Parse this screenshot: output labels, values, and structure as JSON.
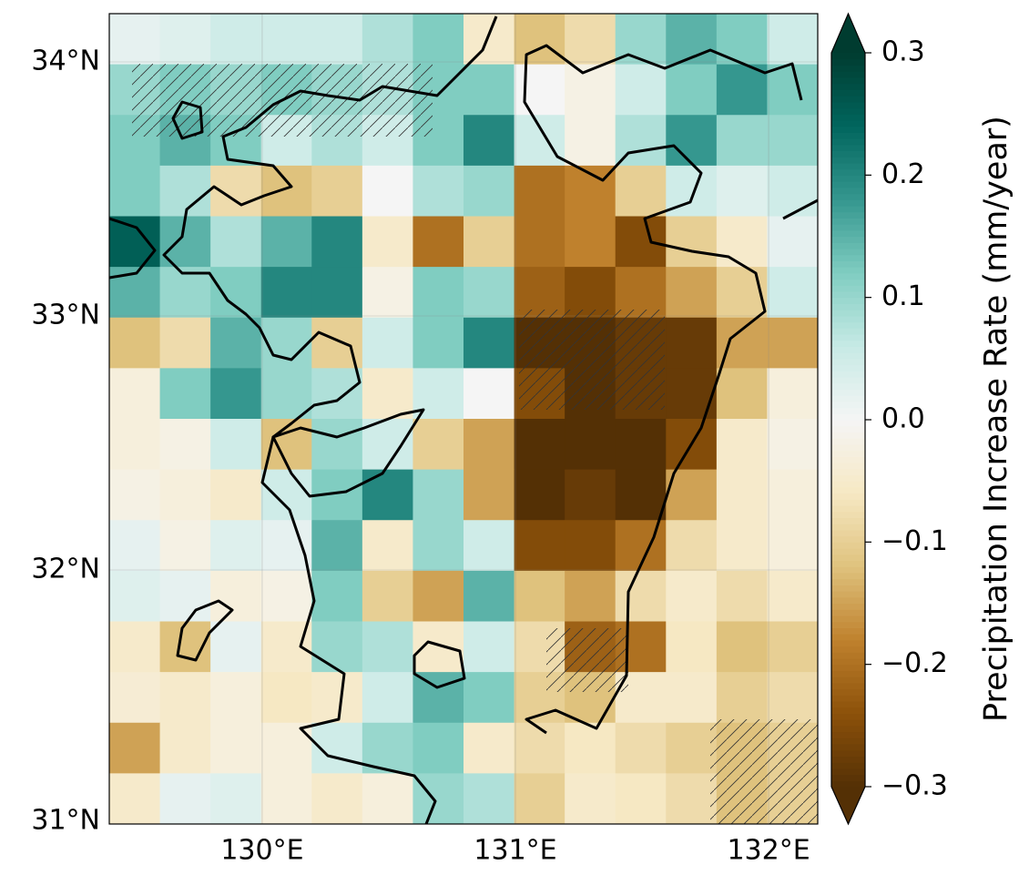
{
  "chart_data": {
    "type": "heatmap",
    "xlim": [
      129.396,
      132.194
    ],
    "ylim": [
      31,
      34.19
    ],
    "xticks": [
      {
        "value": 130,
        "label": "130°E"
      },
      {
        "value": 131,
        "label": "131°E"
      },
      {
        "value": 132,
        "label": "132°E"
      }
    ],
    "yticks": [
      {
        "value": 31,
        "label": "31°N"
      },
      {
        "value": 32,
        "label": "32°N"
      },
      {
        "value": 33,
        "label": "33°N"
      },
      {
        "value": 34,
        "label": "34°N"
      }
    ],
    "grid": true,
    "values": [
      [
        0.02,
        0.03,
        0.05,
        0.05,
        0.05,
        0.08,
        0.12,
        -0.05,
        -0.12,
        -0.08,
        0.1,
        0.15,
        0.12,
        0.05
      ],
      [
        0.1,
        0.12,
        0.1,
        0.12,
        0.1,
        0.08,
        0.12,
        0.12,
        0.0,
        -0.02,
        0.05,
        0.12,
        0.18,
        0.12
      ],
      [
        0.12,
        0.15,
        0.12,
        0.05,
        0.08,
        0.05,
        0.12,
        0.2,
        0.05,
        -0.02,
        0.08,
        0.18,
        0.1,
        0.1
      ],
      [
        0.12,
        0.08,
        -0.08,
        -0.12,
        -0.1,
        0.0,
        0.08,
        0.1,
        -0.2,
        -0.18,
        -0.1,
        0.05,
        0.03,
        0.05
      ],
      [
        0.25,
        0.15,
        0.08,
        0.15,
        0.2,
        -0.05,
        -0.2,
        -0.1,
        -0.2,
        -0.18,
        -0.25,
        -0.1,
        -0.05,
        0.02
      ],
      [
        0.15,
        0.1,
        0.12,
        0.2,
        0.2,
        -0.02,
        0.12,
        0.1,
        -0.22,
        -0.25,
        -0.2,
        -0.15,
        -0.1,
        0.05
      ],
      [
        -0.12,
        -0.08,
        0.15,
        0.1,
        -0.1,
        0.05,
        0.12,
        0.2,
        -0.3,
        -0.3,
        -0.28,
        -0.28,
        -0.15,
        -0.15
      ],
      [
        -0.03,
        0.12,
        0.18,
        0.1,
        0.08,
        -0.05,
        0.05,
        0.0,
        -0.25,
        -0.3,
        -0.28,
        -0.28,
        -0.12,
        -0.03
      ],
      [
        -0.03,
        -0.02,
        0.05,
        -0.12,
        0.1,
        0.05,
        -0.1,
        -0.15,
        -0.3,
        -0.3,
        -0.3,
        -0.25,
        -0.05,
        -0.02
      ],
      [
        -0.02,
        -0.03,
        -0.05,
        0.05,
        0.12,
        0.2,
        0.1,
        -0.15,
        -0.3,
        -0.28,
        -0.3,
        -0.15,
        -0.05,
        -0.03
      ],
      [
        0.02,
        -0.02,
        0.03,
        0.02,
        0.15,
        -0.05,
        0.1,
        0.05,
        -0.25,
        -0.25,
        -0.2,
        -0.08,
        -0.05,
        -0.03
      ],
      [
        0.03,
        0.02,
        -0.03,
        -0.02,
        0.12,
        -0.1,
        -0.15,
        0.15,
        -0.12,
        -0.15,
        -0.08,
        -0.05,
        -0.08,
        -0.05
      ],
      [
        -0.05,
        -0.12,
        0.02,
        -0.05,
        0.1,
        0.08,
        -0.05,
        0.05,
        -0.08,
        -0.22,
        -0.2,
        -0.06,
        -0.12,
        -0.1
      ],
      [
        -0.04,
        -0.05,
        -0.03,
        -0.06,
        -0.05,
        0.05,
        0.15,
        0.12,
        -0.1,
        -0.12,
        -0.05,
        -0.05,
        -0.1,
        -0.08
      ],
      [
        -0.15,
        -0.05,
        -0.03,
        -0.03,
        0.05,
        0.1,
        0.12,
        -0.05,
        -0.08,
        -0.06,
        -0.08,
        -0.1,
        -0.12,
        -0.1
      ],
      [
        -0.05,
        0.02,
        0.03,
        -0.03,
        -0.05,
        -0.03,
        0.1,
        0.08,
        -0.1,
        -0.05,
        -0.06,
        -0.08,
        -0.12,
        -0.1
      ]
    ],
    "colormap": [
      "#543005",
      "#8c510a",
      "#bf812d",
      "#dfc27d",
      "#f6e8c3",
      "#f5f5f5",
      "#c7eae5",
      "#80cdc1",
      "#35978f",
      "#01665e",
      "#003c30"
    ],
    "clim": [
      -0.3,
      0.3
    ],
    "cticks": [
      {
        "value": -0.3,
        "label": "−0.3"
      },
      {
        "value": -0.2,
        "label": "−0.2"
      },
      {
        "value": -0.1,
        "label": "−0.1"
      },
      {
        "value": 0,
        "label": "0.0"
      },
      0.1,
      0.2,
      0.3
    ],
    "colorbar_label": "Precipitation Increase Rate (mm/year)"
  }
}
